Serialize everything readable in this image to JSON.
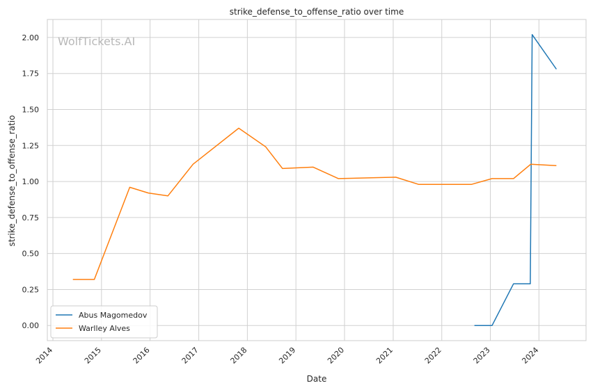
{
  "chart_data": {
    "type": "line",
    "title": "strike_defense_to_offense_ratio over time",
    "xlabel": "Date",
    "ylabel": "strike_defense_to_offense_ratio",
    "watermark": "WolfTickets.AI",
    "x_ticks": [
      "2014",
      "2015",
      "2016",
      "2017",
      "2018",
      "2019",
      "2020",
      "2021",
      "2022",
      "2023",
      "2024"
    ],
    "y_ticks": [
      "0.00",
      "0.25",
      "0.50",
      "0.75",
      "1.00",
      "1.25",
      "1.50",
      "1.75",
      "2.00"
    ],
    "xlim": [
      "2013-11-20",
      "2024-12-20"
    ],
    "ylim": [
      -0.105,
      2.125
    ],
    "grid": true,
    "legend_position": "lower-left",
    "series": [
      {
        "name": "Abus Magomedov",
        "color": "#1f77b4",
        "points": [
          {
            "x": "2022-09-03",
            "y": 0.0
          },
          {
            "x": "2023-01-14",
            "y": 0.0
          },
          {
            "x": "2023-06-24",
            "y": 0.29
          },
          {
            "x": "2023-10-28",
            "y": 0.29
          },
          {
            "x": "2023-11-11",
            "y": 2.02
          },
          {
            "x": "2024-05-11",
            "y": 1.78
          }
        ]
      },
      {
        "name": "Warlley Alves",
        "color": "#ff7f0e",
        "points": [
          {
            "x": "2014-05-31",
            "y": 0.32
          },
          {
            "x": "2014-11-08",
            "y": 0.32
          },
          {
            "x": "2015-08-01",
            "y": 0.96
          },
          {
            "x": "2015-12-19",
            "y": 0.92
          },
          {
            "x": "2016-05-14",
            "y": 0.9
          },
          {
            "x": "2016-11-19",
            "y": 1.12
          },
          {
            "x": "2017-10-28",
            "y": 1.37
          },
          {
            "x": "2018-05-19",
            "y": 1.24
          },
          {
            "x": "2018-09-22",
            "y": 1.09
          },
          {
            "x": "2019-05-11",
            "y": 1.1
          },
          {
            "x": "2019-11-16",
            "y": 1.02
          },
          {
            "x": "2021-01-20",
            "y": 1.03
          },
          {
            "x": "2021-07-10",
            "y": 0.98
          },
          {
            "x": "2022-08-13",
            "y": 0.98
          },
          {
            "x": "2023-01-14",
            "y": 1.02
          },
          {
            "x": "2023-06-24",
            "y": 1.02
          },
          {
            "x": "2023-11-01",
            "y": 1.12
          },
          {
            "x": "2024-05-11",
            "y": 1.11
          }
        ]
      }
    ]
  }
}
